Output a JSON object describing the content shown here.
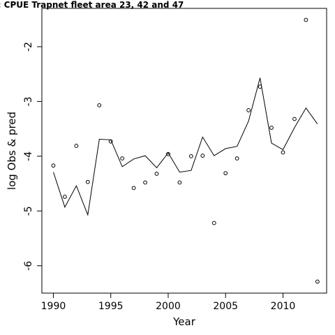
{
  "chart_data": {
    "type": "line",
    "title": "03: CPUE Trapnet fleet area 23, 42 and 47",
    "xlabel": "Year",
    "ylabel": "log Obs & pred",
    "xlim": [
      1989.0,
      2013.8
    ],
    "ylim": [
      -6.5,
      -1.3
    ],
    "x_ticks": [
      1990,
      1995,
      2000,
      2005,
      2010
    ],
    "x_tick_labels": [
      "1990",
      "1995",
      "2000",
      "2005",
      "2010"
    ],
    "y_ticks": [
      -6,
      -5,
      -4,
      -3,
      -2
    ],
    "y_tick_labels": [
      "-6",
      "-5",
      "-4",
      "-3",
      "-2"
    ],
    "grid": false,
    "legend": "none",
    "series": [
      {
        "style": "points",
        "x": [
          1990,
          1991,
          1992,
          1993,
          1994,
          1995,
          1996,
          1997,
          1998,
          1999,
          2000,
          2001,
          2002,
          2003,
          2004,
          2005,
          2006,
          2007,
          2008,
          2009,
          2010,
          2011,
          2012,
          2013
        ],
        "y": [
          -4.17,
          -4.74,
          -3.81,
          -4.47,
          -3.07,
          -3.73,
          -4.04,
          -4.58,
          -4.48,
          -4.32,
          -3.96,
          -4.48,
          -4.0,
          -3.99,
          -5.22,
          -4.31,
          -4.04,
          -3.16,
          -2.73,
          -3.48,
          -3.93,
          -3.32,
          -1.51,
          -6.29
        ]
      },
      {
        "style": "line",
        "x": [
          1990,
          1991,
          1992,
          1993,
          1994,
          1995,
          1996,
          1997,
          1998,
          1999,
          2000,
          2001,
          2002,
          2003,
          2004,
          2005,
          2006,
          2007,
          2008,
          2009,
          2010,
          2011,
          2012,
          2013
        ],
        "y": [
          -4.29,
          -4.93,
          -4.54,
          -5.07,
          -3.69,
          -3.7,
          -4.19,
          -4.05,
          -3.99,
          -4.21,
          -3.94,
          -4.29,
          -4.26,
          -3.65,
          -3.99,
          -3.86,
          -3.82,
          -3.36,
          -2.57,
          -3.76,
          -3.88,
          -3.48,
          -3.12,
          -3.41
        ]
      }
    ]
  }
}
